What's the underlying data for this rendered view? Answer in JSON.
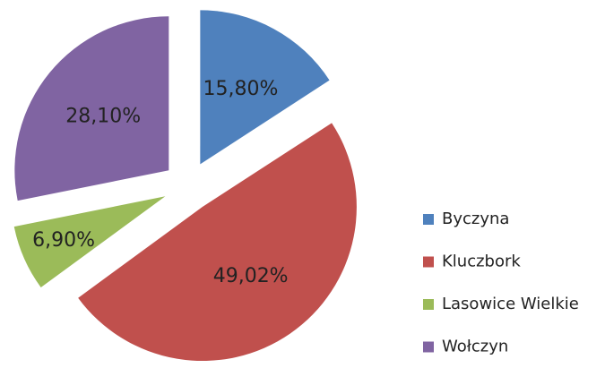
{
  "chart_data": {
    "type": "pie",
    "categories": [
      "Byczyna",
      "Kluczbork",
      "Lasowice Wielkie",
      "Wołczyn"
    ],
    "values": [
      15.8,
      49.02,
      6.9,
      28.1
    ],
    "value_labels": [
      "15,80%",
      "49,02%",
      "6,90%",
      "28,10%"
    ],
    "colors": [
      "#4f81bd",
      "#c0504d",
      "#9bbb59",
      "#8064a2"
    ],
    "exploded": true,
    "legend": "right"
  }
}
